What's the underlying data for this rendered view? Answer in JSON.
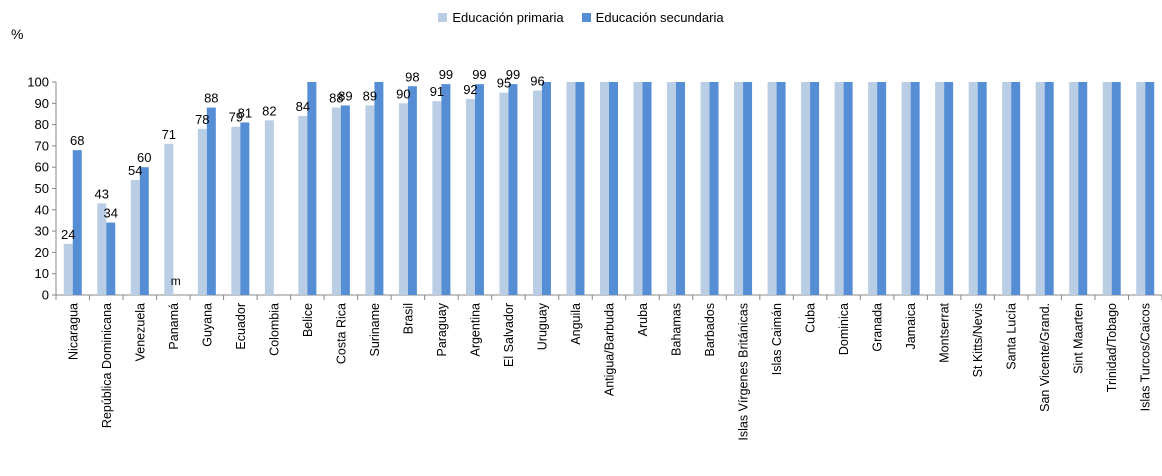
{
  "chart_data": {
    "type": "bar",
    "unit_label": "%",
    "ylim": [
      0,
      100
    ],
    "yticks": [
      0,
      10,
      20,
      30,
      40,
      50,
      60,
      70,
      80,
      90,
      100
    ],
    "grid": false,
    "legend_position": "top-center",
    "categories": [
      "Nicaragua",
      "República Dominicana",
      "Venezuela",
      "Panamá",
      "Guyana",
      "Ecuador",
      "Colombia",
      "Belice",
      "Costa Rica",
      "Suriname",
      "Brasil",
      "Paraguay",
      "Argentina",
      "El Salvador",
      "Uruguay",
      "Anguila",
      "Antigua/Barbuda",
      "Aruba",
      "Bahamas",
      "Barbados",
      "Islas Vírgenes Británicas",
      "Islas Caimán",
      "Cuba",
      "Dominica",
      "Granada",
      "Jamaica",
      "Montserrat",
      "St Kitts/Nevis",
      "Santa Lucía",
      "San Vicente/Grand.",
      "Sint Maarten",
      "Trinidad/Tobago",
      "Islas Turcos/Caicos"
    ],
    "series": [
      {
        "name": "Educación primaria",
        "color": "#b9cde5",
        "values": [
          24,
          43,
          54,
          71,
          78,
          79,
          82,
          84,
          88,
          89,
          90,
          91,
          92,
          95,
          96,
          100,
          100,
          100,
          100,
          100,
          100,
          100,
          100,
          100,
          100,
          100,
          100,
          100,
          100,
          100,
          100,
          100,
          100
        ],
        "labels": [
          "24",
          "43",
          "54",
          "71",
          "78",
          "79",
          "82",
          "84",
          "88",
          "89",
          "90",
          "91",
          "92",
          "95",
          "96",
          null,
          null,
          null,
          null,
          null,
          null,
          null,
          null,
          null,
          null,
          null,
          null,
          null,
          null,
          null,
          null,
          null,
          null
        ]
      },
      {
        "name": "Educación secundaria",
        "color": "#558ed5",
        "values": [
          68,
          34,
          60,
          null,
          88,
          81,
          null,
          100,
          89,
          100,
          98,
          99,
          99,
          99,
          100,
          100,
          100,
          100,
          100,
          100,
          100,
          100,
          100,
          100,
          100,
          100,
          100,
          100,
          100,
          100,
          100,
          100,
          100
        ],
        "labels": [
          "68",
          "34",
          "60",
          "m",
          "88",
          "81",
          null,
          null,
          "89",
          null,
          "98",
          "99",
          "99",
          "99",
          null,
          null,
          null,
          null,
          null,
          null,
          null,
          null,
          null,
          null,
          null,
          null,
          null,
          null,
          null,
          null,
          null,
          null,
          null
        ]
      }
    ]
  }
}
